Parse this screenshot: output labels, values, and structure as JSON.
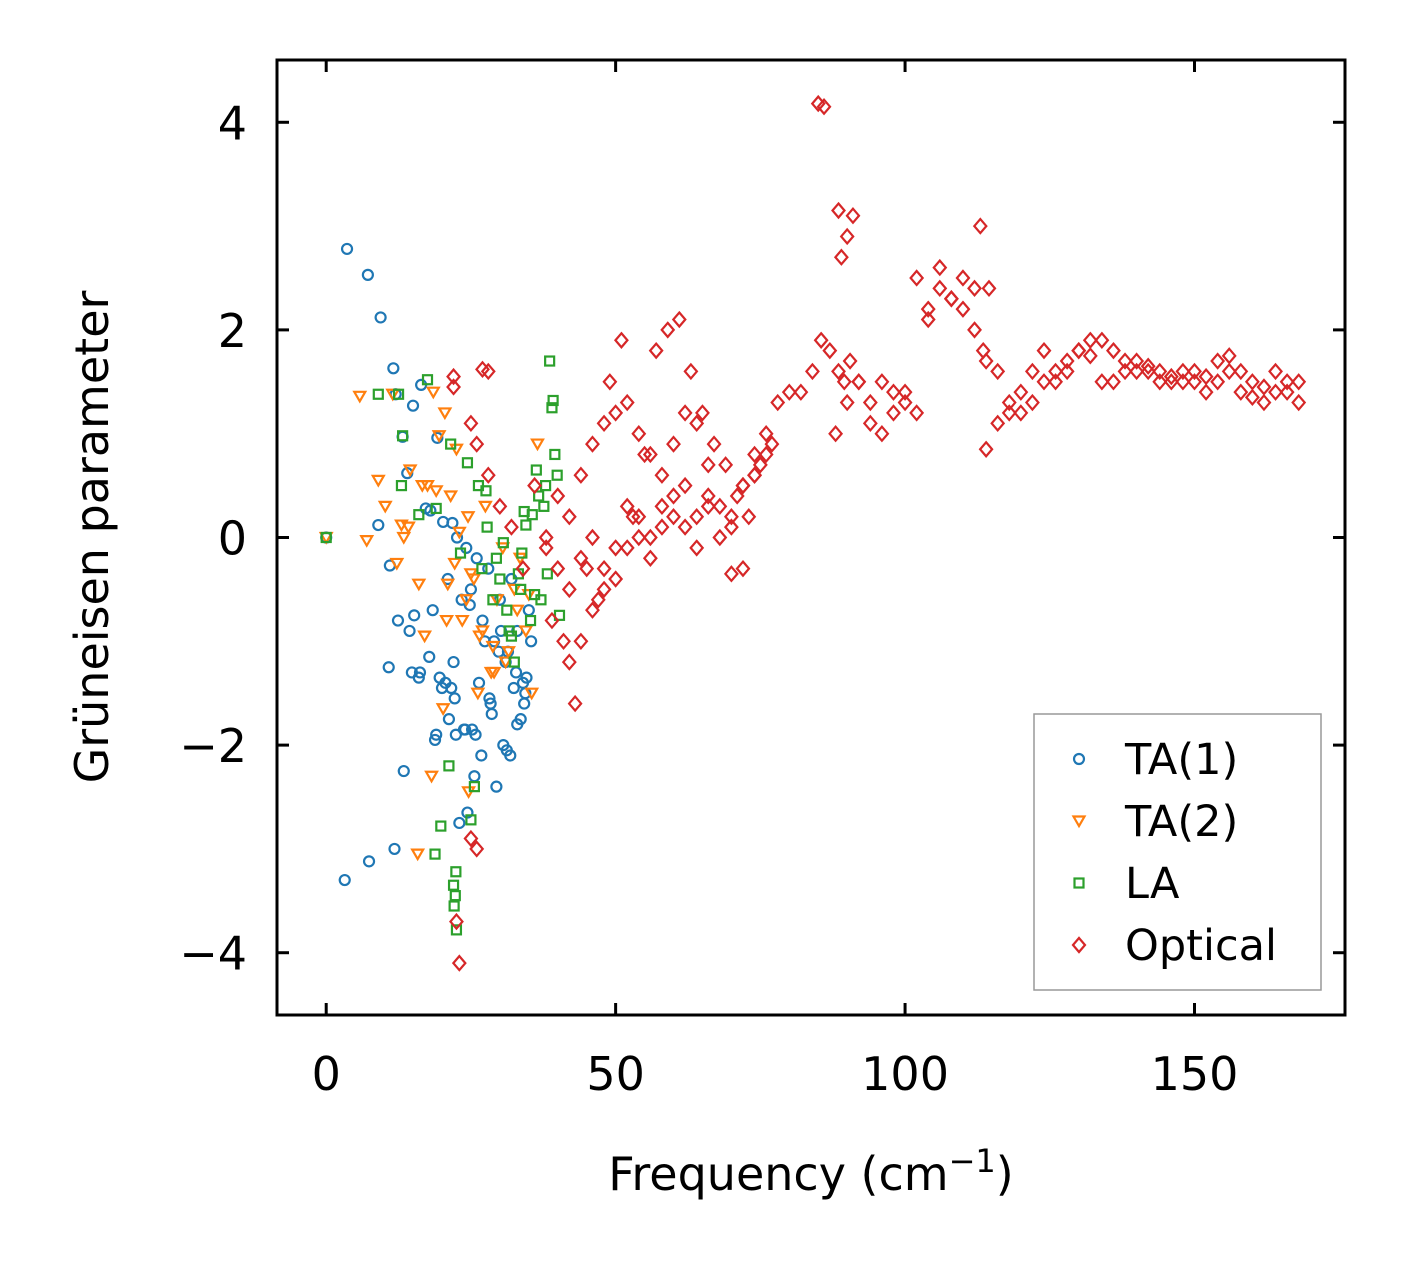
{
  "chart_data": {
    "type": "scatter",
    "title": "",
    "xlabel": "Frequency (cm",
    "xlabel_sup": "−1",
    "xlabel_close": ")",
    "ylabel": "Grüneisen parameter",
    "xlim": [
      -8.5,
      176
    ],
    "ylim": [
      -4.6,
      4.6
    ],
    "xticks": [
      0,
      50,
      100,
      150
    ],
    "xtick_labels": [
      "0",
      "50",
      "100",
      "150"
    ],
    "yticks": [
      -4,
      -2,
      0,
      2,
      4
    ],
    "ytick_labels": [
      "−4",
      "−2",
      "0",
      "2",
      "4"
    ],
    "legend_position": "bottom-right",
    "series": [
      {
        "name": "TA(1)",
        "marker": "circle",
        "color": "#1f77b4",
        "x": [
          0,
          3.6,
          7.2,
          9.4,
          11.6,
          12.0,
          13.2,
          14.0,
          15.0,
          16.4,
          17.2,
          18.0,
          19.2,
          20.2,
          21.0,
          21.8,
          22.6,
          23.4,
          24.2,
          25.0,
          26.0,
          27.0,
          28.0,
          29.0,
          30.0,
          31.0,
          32.0,
          33.0,
          34.0,
          35.0,
          3.2,
          7.4,
          11.8,
          13.4,
          16.2,
          19.0,
          21.2,
          23.0,
          24.4,
          25.6,
          26.8,
          28.2,
          29.4,
          30.6,
          31.8,
          33.0,
          34.2,
          9.0,
          11.0,
          14.4,
          16.0,
          18.4,
          20.6,
          22.4,
          24.0,
          26.4,
          28.6,
          31.2,
          33.6,
          35.4,
          12.4,
          15.2,
          17.8,
          20.0,
          22.0,
          24.8,
          27.4,
          30.2,
          32.4,
          34.6,
          19.6,
          21.6,
          23.8,
          25.8,
          29.8,
          32.8,
          10.8,
          14.8,
          18.8,
          22.2,
          25.2,
          28.4,
          31.4,
          34.4
        ],
        "y": [
          0,
          2.78,
          2.53,
          2.12,
          1.63,
          1.38,
          0.97,
          0.62,
          1.27,
          1.47,
          0.28,
          0.26,
          0.96,
          0.15,
          -0.4,
          0.14,
          0.0,
          -0.6,
          -0.1,
          -0.5,
          -0.2,
          -0.8,
          -0.3,
          -1.0,
          -0.6,
          -1.2,
          -0.4,
          -0.9,
          -1.4,
          -0.7,
          -3.3,
          -3.12,
          -3.0,
          -2.25,
          -1.3,
          -1.9,
          -1.75,
          -2.75,
          -2.65,
          -2.3,
          -2.1,
          -1.55,
          -2.4,
          -2.0,
          -2.1,
          -1.8,
          -1.6,
          0.12,
          -0.27,
          -0.9,
          -1.35,
          -0.7,
          -1.4,
          -1.9,
          -1.85,
          -1.4,
          -1.7,
          -2.05,
          -1.75,
          -1.0,
          -0.8,
          -0.75,
          -1.15,
          -1.45,
          -1.2,
          -0.65,
          -1.0,
          -0.9,
          -1.45,
          -1.35,
          -1.35,
          -1.45,
          -1.85,
          -1.9,
          -1.1,
          -1.3,
          -1.25,
          -1.3,
          -1.95,
          -1.55,
          -1.85,
          -1.6,
          -1.1,
          -1.5
        ]
      },
      {
        "name": "TA(2)",
        "marker": "triangle-down",
        "color": "#ff7f0e",
        "x": [
          0,
          5.8,
          7.0,
          9.0,
          11.5,
          13.0,
          14.5,
          16.0,
          17.5,
          18.5,
          19.5,
          20.5,
          21.5,
          22.5,
          23.5,
          24.5,
          25.5,
          26.5,
          27.5,
          28.5,
          29.5,
          30.5,
          31.5,
          32.5,
          33.5,
          34.5,
          35.5,
          36.5,
          15.8,
          18.2,
          20.2,
          22.2,
          24.2,
          26.2,
          10.2,
          12.2,
          14.2,
          16.6,
          19.0,
          21.0,
          23.0,
          25.0,
          27.0,
          29.0,
          31.0,
          33.0,
          35.0,
          13.4,
          17.0,
          20.8,
          24.6,
          28.8
        ],
        "y": [
          0,
          1.36,
          -0.03,
          0.55,
          1.38,
          0.12,
          0.65,
          -0.45,
          0.5,
          1.4,
          0.98,
          1.2,
          0.4,
          0.85,
          -0.8,
          0.2,
          -0.4,
          -0.95,
          0.3,
          -1.3,
          -0.6,
          -0.1,
          -1.1,
          -0.5,
          -0.2,
          -0.9,
          -1.5,
          0.9,
          -3.05,
          -2.3,
          -1.65,
          -0.25,
          -0.6,
          -1.5,
          0.3,
          -0.25,
          0.1,
          0.5,
          0.45,
          -0.45,
          0.05,
          -0.35,
          -0.9,
          -1.3,
          -1.2,
          -0.7,
          -0.55,
          0.0,
          -0.95,
          -0.8,
          -2.45,
          -1.05
        ]
      },
      {
        "name": "LA",
        "marker": "square",
        "color": "#2ca02c",
        "x": [
          0,
          9.0,
          12.5,
          17.5,
          13.2,
          19.8,
          21.2,
          22.0,
          22.3,
          22.5,
          22.1,
          22.4,
          25.0,
          26.3,
          27.8,
          30.0,
          31.2,
          32.5,
          33.6,
          34.5,
          35.6,
          36.3,
          37.1,
          37.9,
          38.6,
          39.2,
          39.9,
          40.3,
          13.0,
          16.0,
          19.0,
          21.5,
          23.2,
          24.4,
          26.9,
          28.8,
          30.6,
          32.0,
          33.2,
          34.2,
          35.3,
          36.7,
          38.2,
          39.5,
          18.8,
          25.6,
          27.6,
          29.4,
          31.6,
          33.8,
          36.0,
          37.6,
          39.0
        ],
        "y": [
          0,
          1.38,
          1.38,
          1.52,
          0.98,
          -2.78,
          -2.2,
          -3.35,
          -3.45,
          -3.78,
          -3.55,
          -3.22,
          -2.72,
          0.5,
          0.1,
          -0.4,
          -0.7,
          -1.2,
          -0.5,
          0.12,
          0.22,
          0.65,
          -0.6,
          0.5,
          1.7,
          1.32,
          0.6,
          -0.75,
          0.5,
          0.22,
          0.28,
          0.9,
          -0.15,
          0.72,
          -0.3,
          -0.6,
          -0.05,
          -0.95,
          -0.35,
          0.25,
          -0.8,
          0.4,
          -0.35,
          0.8,
          -3.05,
          -2.4,
          0.45,
          -0.2,
          -0.9,
          -0.15,
          -0.55,
          0.3,
          1.25
        ]
      },
      {
        "name": "Optical",
        "marker": "diamond",
        "color": "#d62728",
        "x": [
          22.0,
          22.5,
          23.0,
          25.0,
          26.0,
          28.0,
          30.0,
          32.0,
          34.0,
          36.0,
          38.0,
          40.0,
          42.0,
          44.0,
          46.0,
          48.0,
          50.0,
          52.0,
          54.0,
          56.0,
          58.0,
          60.0,
          62.0,
          64.0,
          66.0,
          68.0,
          70.0,
          72.0,
          74.0,
          76.0,
          78.0,
          80.0,
          82.0,
          84.0,
          85.5,
          87.0,
          88.5,
          89.5,
          90.5,
          92.0,
          94.0,
          96.0,
          98.0,
          100.0,
          102.0,
          104.0,
          106.0,
          108.0,
          110.0,
          112.0,
          113.5,
          114.5,
          116.0,
          118.0,
          120.0,
          122.0,
          124.0,
          126.0,
          128.0,
          130.0,
          132.0,
          134.0,
          136.0,
          138.0,
          140.0,
          142.0,
          144.0,
          146.0,
          148.0,
          150.0,
          152.0,
          154.0,
          156.0,
          158.0,
          160.0,
          162.0,
          164.0,
          166.0,
          168.0,
          40.0,
          42.0,
          44.0,
          46.0,
          48.0,
          50.0,
          52.0,
          54.0,
          56.0,
          58.0,
          60.0,
          62.0,
          64.0,
          66.0,
          68.0,
          70.0,
          72.0,
          74.0,
          76.0,
          88.0,
          90.0,
          92.0,
          94.0,
          96.0,
          98.0,
          100.0,
          102.0,
          104.0,
          106.0,
          108.0,
          110.0,
          112.0,
          114.0,
          116.0,
          118.0,
          120.0,
          122.0,
          124.0,
          126.0,
          128.0,
          130.0,
          132.0,
          134.0,
          136.0,
          138.0,
          140.0,
          142.0,
          144.0,
          146.0,
          148.0,
          150.0,
          152.0,
          154.0,
          156.0,
          158.0,
          160.0,
          162.0,
          164.0,
          166.0,
          168.0,
          42.0,
          44.0,
          46.0,
          48.0,
          50.0,
          52.0,
          54.0,
          56.0,
          58.0,
          60.0,
          62.0,
          64.0,
          66.0,
          70.0,
          72.0,
          74.0,
          38.0,
          39.0,
          41.0,
          43.0,
          45.0,
          47.0,
          49.0,
          51.0,
          53.0,
          55.0,
          57.0,
          59.0,
          61.0,
          63.0,
          65.0,
          67.0,
          69.0,
          71.0,
          73.0,
          75.0,
          77.0,
          85.0,
          86.0,
          88.5,
          89.0,
          90.0,
          91.0,
          113.0,
          114.0,
          27.0,
          28.0,
          22.0,
          25.0,
          26.0
        ],
        "y": [
          1.45,
          -3.7,
          -4.1,
          1.1,
          0.9,
          0.6,
          0.3,
          0.1,
          -0.3,
          0.5,
          0.0,
          0.4,
          0.2,
          0.6,
          0.9,
          1.1,
          1.2,
          1.3,
          1.0,
          0.8,
          0.6,
          0.9,
          1.2,
          1.1,
          0.7,
          0.3,
          0.1,
          0.5,
          0.6,
          1.0,
          1.3,
          1.4,
          1.4,
          1.6,
          1.9,
          1.8,
          1.6,
          1.5,
          1.7,
          1.5,
          1.3,
          1.5,
          1.2,
          1.4,
          2.5,
          2.2,
          2.4,
          2.3,
          2.2,
          2.0,
          1.8,
          2.4,
          1.6,
          1.3,
          1.4,
          1.6,
          1.8,
          1.6,
          1.7,
          1.8,
          1.75,
          1.9,
          1.8,
          1.7,
          1.7,
          1.65,
          1.6,
          1.55,
          1.5,
          1.6,
          1.55,
          1.7,
          1.75,
          1.6,
          1.5,
          1.45,
          1.6,
          1.5,
          1.3,
          -0.3,
          -0.5,
          -0.2,
          0.0,
          -0.3,
          -0.1,
          0.3,
          0.2,
          0.0,
          0.3,
          0.4,
          0.5,
          0.2,
          0.3,
          0.0,
          0.2,
          -0.3,
          0.6,
          0.8,
          1.0,
          1.3,
          1.5,
          1.1,
          1.0,
          1.4,
          1.3,
          1.2,
          2.1,
          2.6,
          2.3,
          2.5,
          2.4,
          1.7,
          1.1,
          1.2,
          1.2,
          1.3,
          1.5,
          1.5,
          1.6,
          1.8,
          1.9,
          1.5,
          1.5,
          1.6,
          1.6,
          1.6,
          1.5,
          1.5,
          1.6,
          1.5,
          1.4,
          1.5,
          1.6,
          1.4,
          1.35,
          1.3,
          1.4,
          1.4,
          1.5,
          -1.2,
          -1.0,
          -0.7,
          -0.5,
          -0.4,
          -0.1,
          0.0,
          -0.2,
          0.1,
          0.2,
          0.1,
          -0.1,
          0.4,
          -0.35,
          0.5,
          0.8,
          -0.1,
          -0.8,
          -1.0,
          -1.6,
          -0.3,
          -0.6,
          1.5,
          1.9,
          0.2,
          0.8,
          1.8,
          2.0,
          2.1,
          1.6,
          1.2,
          0.9,
          0.7,
          0.4,
          0.2,
          0.7,
          0.9,
          4.18,
          4.15,
          3.15,
          2.7,
          2.9,
          3.1,
          3.0,
          0.85,
          1.62,
          1.6,
          1.55,
          -2.9,
          -3.0
        ]
      }
    ]
  }
}
